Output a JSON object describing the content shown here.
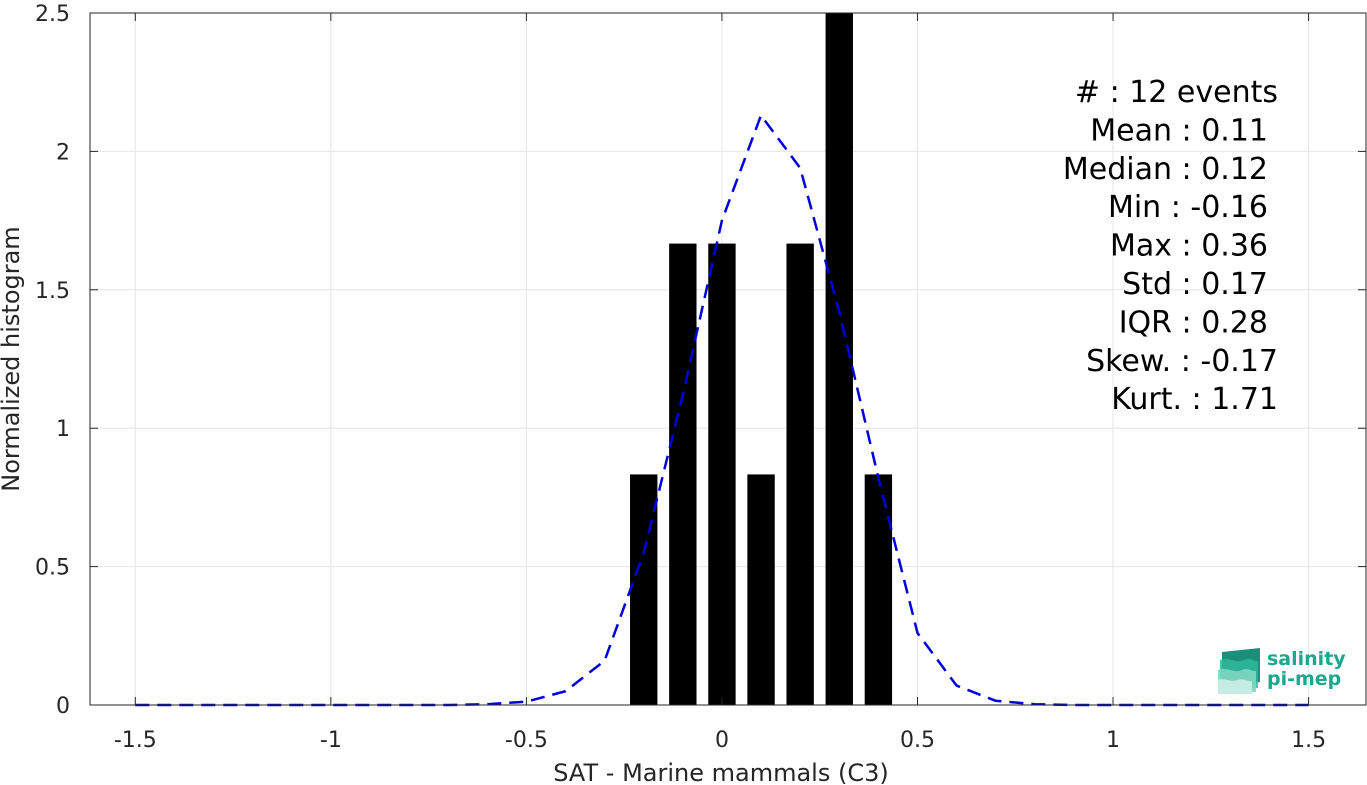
{
  "chart_data": {
    "type": "bar",
    "title": "",
    "xlabel": "SAT - Marine mammals (C3)",
    "ylabel": "Normalized histogram",
    "xlim": [
      -1.5,
      1.5
    ],
    "ylim": [
      0,
      2.5
    ],
    "grid": true,
    "x_ticks": [
      -1.5,
      -1,
      -0.5,
      0,
      0.5,
      1,
      1.5
    ],
    "x_tick_labels": [
      "-1.5",
      "-1",
      "-0.5",
      "0",
      "0.5",
      "1",
      "1.5"
    ],
    "y_ticks": [
      0,
      0.5,
      1,
      1.5,
      2,
      2.5
    ],
    "y_tick_labels": [
      "0",
      "0.5",
      "1",
      "1.5",
      "2",
      "2.5"
    ],
    "bar_width": 0.07,
    "bars": [
      {
        "x": -0.2,
        "value": 0.833
      },
      {
        "x": -0.1,
        "value": 1.667
      },
      {
        "x": 0.0,
        "value": 1.667
      },
      {
        "x": 0.1,
        "value": 0.833
      },
      {
        "x": 0.2,
        "value": 1.667
      },
      {
        "x": 0.3,
        "value": 2.5
      },
      {
        "x": 0.4,
        "value": 0.833
      }
    ],
    "bar_color": "#000000",
    "fit_curve": {
      "style": "dashed",
      "color": "#0000dd",
      "x": [
        -1.5,
        -1.4,
        -1.3,
        -1.2,
        -1.1,
        -1.0,
        -0.9,
        -0.8,
        -0.7,
        -0.6,
        -0.5,
        -0.4,
        -0.3,
        -0.2,
        -0.1,
        0.0,
        0.1,
        0.2,
        0.3,
        0.4,
        0.5,
        0.6,
        0.7,
        0.8,
        0.9,
        1.0,
        1.1,
        1.2,
        1.3,
        1.4,
        1.5
      ],
      "y": [
        0,
        0,
        0,
        0,
        0,
        0,
        0,
        0,
        0,
        0.003,
        0.012,
        0.05,
        0.16,
        0.55,
        1.12,
        1.75,
        2.13,
        1.94,
        1.42,
        0.82,
        0.26,
        0.07,
        0.015,
        0.003,
        0,
        0,
        0,
        0,
        0,
        0,
        0
      ]
    },
    "stats": [
      "#  : 12 events",
      "Mean : 0.11",
      "Median : 0.12",
      "Min : -0.16",
      "Max : 0.36",
      "Std : 0.17",
      "IQR : 0.28",
      "Skew. : -0.17",
      "Kurt. : 1.71"
    ],
    "logo": {
      "line1": "salinity",
      "line2": "pi-mep",
      "color": "#1aa88f"
    }
  }
}
